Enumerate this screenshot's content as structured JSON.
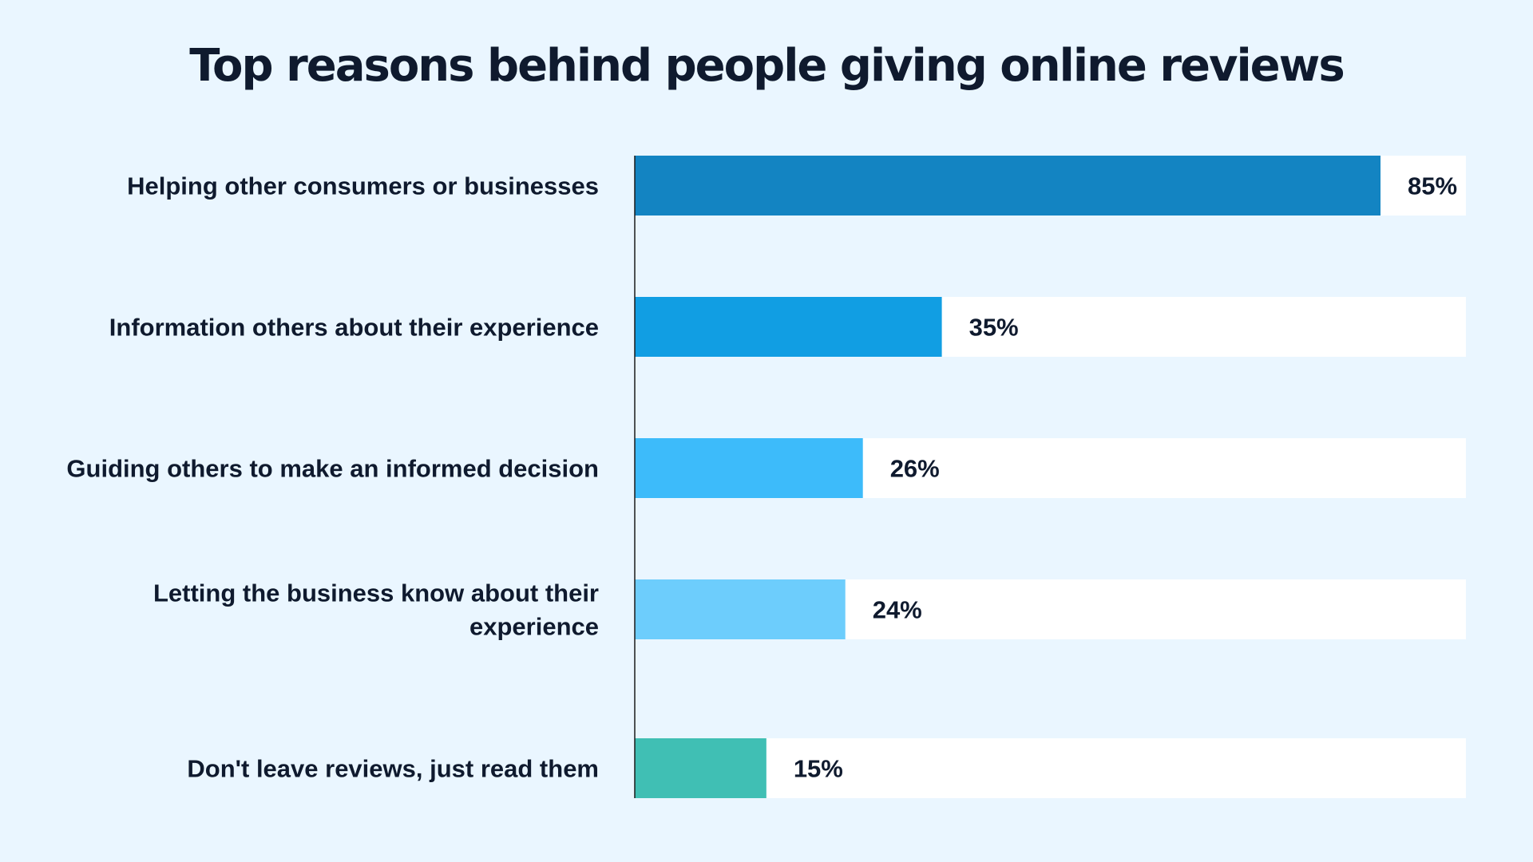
{
  "chart_data": {
    "type": "bar",
    "orientation": "horizontal",
    "title": "Top reasons behind people giving online reviews",
    "categories": [
      "Helping other consumers or businesses",
      "Information others about their experience",
      "Guiding others to make an informed decision",
      "Letting the business know about their experience",
      "Don't leave reviews, just read them"
    ],
    "values": [
      85,
      35,
      26,
      24,
      15
    ],
    "value_labels": [
      "85%",
      "35%",
      "26%",
      "24%",
      "15%"
    ],
    "xlim": [
      0,
      100
    ],
    "unit": "%",
    "grid": false,
    "legend": "none",
    "colors": [
      "#1384c2",
      "#119ee3",
      "#3dbbfa",
      "#6dcdfc",
      "#40bfb4"
    ],
    "track_color": "#ffffff",
    "axis_color": "#1a1a1a"
  }
}
